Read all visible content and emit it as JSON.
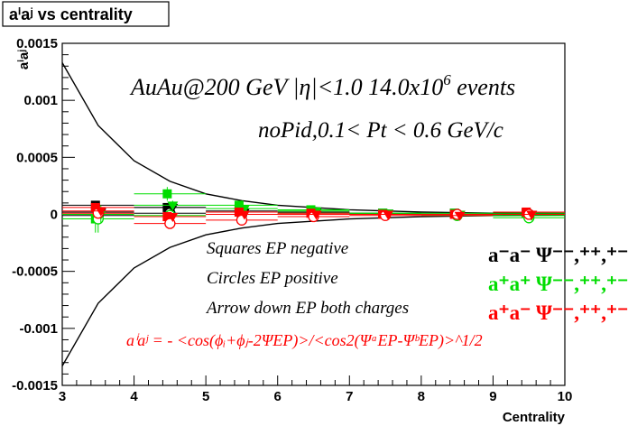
{
  "chart_data": {
    "type": "scatter",
    "title": "aⁱaʲ vs centrality",
    "xlabel": "Centrality",
    "ylabel": "aⁱaʲ",
    "xlim": [
      3,
      10
    ],
    "ylim": [
      -0.0015,
      0.0015
    ],
    "x_ticks": [
      "3",
      "4",
      "5",
      "6",
      "7",
      "8",
      "9",
      "10"
    ],
    "y_ticks": [
      "-0.0015",
      "-0.001",
      "-0.0005",
      "0",
      "0.0005",
      "0.001",
      "0.0015"
    ],
    "grid": false,
    "annotations": {
      "line1": "AuAu@200 GeV |η|<1.0 14.0x10",
      "line1_sup": "6",
      "line1_tail": " events",
      "line2": "noPid,0.1< Pt < 0.6 GeV/c",
      "squares": "Squares EP negative",
      "circles": "Circles EP positive",
      "arrows": "Arrow down EP both charges",
      "formula": "aⁱaʲ = - <cos(ϕᵢ+ϕⱼ-2ΨEP)>/<cos2(ΨᵃEP-ΨᵇEP)>^1/2"
    },
    "legend": [
      {
        "label": "a⁻a⁻  Ψ⁻⁻,⁺⁺,⁺⁻",
        "color": "#000000"
      },
      {
        "label": "a⁺a⁺  Ψ⁻⁻,⁺⁺,⁺⁻",
        "color": "#00dd00"
      },
      {
        "label": "a⁺a⁻  Ψ⁻⁻,⁺⁺,⁺⁻",
        "color": "#ff0000"
      }
    ],
    "envelope": {
      "x": [
        3.0,
        3.5,
        4.0,
        4.5,
        5.0,
        5.5,
        6.0,
        6.5,
        7.0,
        7.5,
        8.0,
        8.5,
        9.0,
        9.5,
        10.0
      ],
      "upper": [
        0.00133,
        0.00078,
        0.00047,
        0.00029,
        0.00018,
        0.00012,
        8e-05,
        6e-05,
        4e-05,
        3e-05,
        2e-05,
        1.5e-05,
        1e-05,
        8e-06,
        6e-06
      ]
    },
    "series": [
      {
        "name": "",
        "color": "#000000",
        "marker": "square",
        "x": [
          3.5,
          4.5,
          5.5,
          6.5,
          7.5,
          8.5,
          9.5
        ],
        "y": [
          8e-05,
          6e-05,
          3e-05,
          2e-05,
          1e-05,
          1e-05,
          1e-05
        ],
        "err": [
          3e-05,
          2e-05,
          1e-05,
          1e-05,
          1e-05,
          1e-05,
          1e-05
        ]
      },
      {
        "name": "",
        "color": "#000000",
        "marker": "circle",
        "x": [
          3.5,
          4.5,
          5.5,
          6.5,
          7.5,
          8.5,
          9.5
        ],
        "y": [
          -1e-05,
          1e-05,
          0.0,
          0.0,
          0.0,
          0.0,
          0.0
        ],
        "err": [
          3e-05,
          2e-05,
          1e-05,
          1e-05,
          1e-05,
          1e-05,
          1e-05
        ]
      },
      {
        "name": "",
        "color": "#000000",
        "marker": "triangle-down",
        "x": [
          3.5,
          4.5,
          5.5,
          6.5,
          7.5,
          8.5,
          9.5
        ],
        "y": [
          2e-05,
          6e-05,
          2e-05,
          2e-05,
          1e-05,
          0.0,
          0.0
        ],
        "err": [
          2e-05,
          2e-05,
          1e-05,
          1e-05,
          1e-05,
          1e-05,
          1e-05
        ]
      },
      {
        "name": "",
        "color": "#00dd00",
        "marker": "square",
        "x": [
          3.5,
          4.5,
          5.5,
          6.5,
          7.5,
          8.5,
          9.5
        ],
        "y": [
          -4e-05,
          0.00018,
          8e-05,
          4e-05,
          1e-05,
          1e-05,
          1e-05
        ],
        "err": [
          0.00012,
          6e-05,
          3e-05,
          2e-05,
          1e-05,
          1e-05,
          1e-05
        ]
      },
      {
        "name": "",
        "color": "#00dd00",
        "marker": "circle",
        "x": [
          3.5,
          4.5,
          5.5,
          6.5,
          7.5,
          8.5,
          9.5
        ],
        "y": [
          -4e-05,
          -1e-05,
          2e-05,
          1e-05,
          0.0,
          -1e-05,
          -3e-05
        ],
        "err": [
          0.00012,
          6e-05,
          3e-05,
          2e-05,
          1e-05,
          1e-05,
          1e-05
        ]
      },
      {
        "name": "",
        "color": "#00dd00",
        "marker": "triangle-down",
        "x": [
          3.5,
          4.5,
          5.5,
          6.5,
          7.5,
          8.5,
          9.5
        ],
        "y": [
          0.0,
          8e-05,
          5e-05,
          3e-05,
          1e-05,
          0.0,
          -1e-05
        ],
        "err": [
          8e-05,
          4e-05,
          2e-05,
          1e-05,
          1e-05,
          1e-05,
          1e-05
        ]
      },
      {
        "name": "",
        "color": "#ff0000",
        "marker": "square",
        "x": [
          3.5,
          4.5,
          5.5,
          6.5,
          7.5,
          8.5,
          9.5
        ],
        "y": [
          6e-05,
          -2e-05,
          2e-05,
          1e-05,
          0.0,
          0.0,
          2e-05
        ],
        "err": [
          4e-05,
          3e-05,
          1e-05,
          1e-05,
          1e-05,
          1e-05,
          1e-05
        ]
      },
      {
        "name": "",
        "color": "#ff0000",
        "marker": "circle",
        "x": [
          3.5,
          4.5,
          5.5,
          6.5,
          7.5,
          8.5,
          9.5
        ],
        "y": [
          1e-05,
          -8e-05,
          -5e-05,
          -2e-05,
          -1e-05,
          0.0,
          0.0
        ],
        "err": [
          4e-05,
          3e-05,
          1e-05,
          1e-05,
          1e-05,
          1e-05,
          1e-05
        ]
      },
      {
        "name": "",
        "color": "#ff0000",
        "marker": "triangle-down",
        "x": [
          3.5,
          4.5,
          5.5,
          6.5,
          7.5,
          8.5,
          9.5
        ],
        "y": [
          3e-05,
          -2e-05,
          0.0,
          0.0,
          0.0,
          -1e-05,
          0.0
        ],
        "err": [
          3e-05,
          2e-05,
          1e-05,
          1e-05,
          1e-05,
          1e-05,
          1e-05
        ]
      }
    ]
  }
}
